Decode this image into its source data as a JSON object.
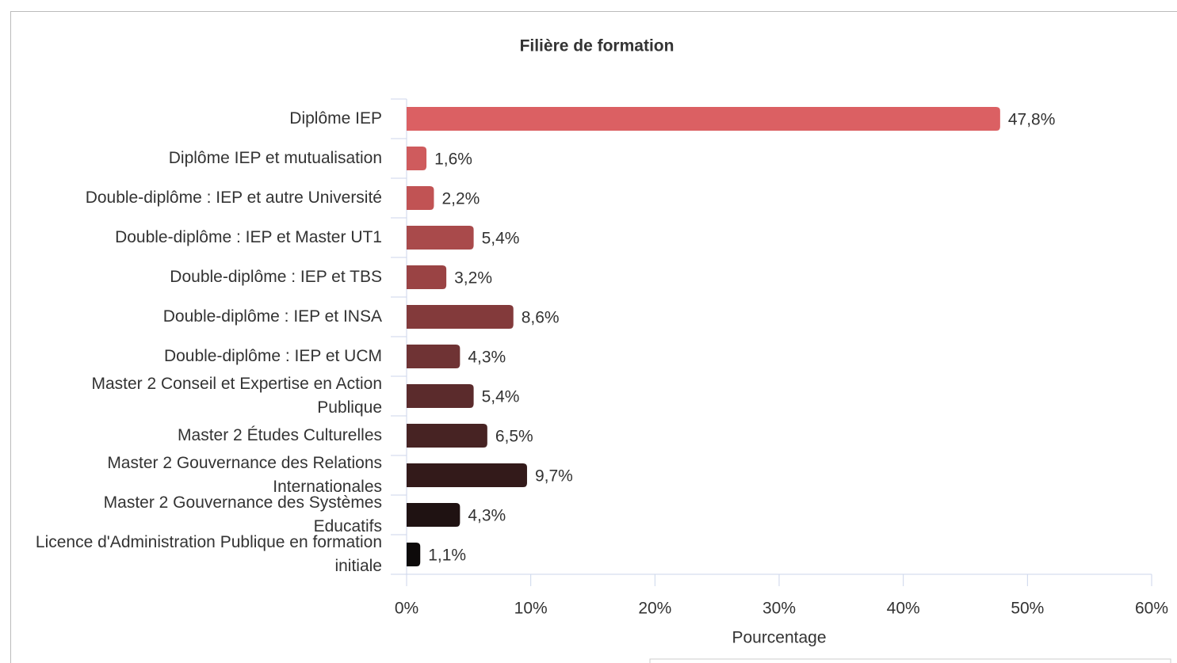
{
  "chart_data": {
    "type": "bar",
    "orientation": "horizontal",
    "title": "Filière de formation",
    "x_axis_label": "Pourcentage",
    "categories": [
      "Diplôme IEP",
      "Diplôme IEP et mutualisation",
      "Double-diplôme : IEP et autre Université",
      "Double-diplôme : IEP et Master UT1",
      "Double-diplôme : IEP et TBS",
      "Double-diplôme : IEP et INSA",
      "Double-diplôme : IEP et UCM",
      "Master 2 Conseil et Expertise en Action Publique",
      "Master 2 Études Culturelles",
      "Master 2 Gouvernance des Relations Internationales",
      "Master 2 Gouvernance des Systèmes Educatifs",
      "Licence d'Administration Publique en formation initiale"
    ],
    "values": [
      47.8,
      1.6,
      2.2,
      5.4,
      3.2,
      8.6,
      4.3,
      5.4,
      6.5,
      9.7,
      4.3,
      1.1
    ],
    "value_labels": [
      "47,8%",
      "1,6%",
      "2,2%",
      "5,4%",
      "3,2%",
      "8,6%",
      "4,3%",
      "5,4%",
      "6,5%",
      "9,7%",
      "4,3%",
      "1,1%"
    ],
    "colors": [
      "#db6063",
      "#cf5b5d",
      "#c15354",
      "#a94a4b",
      "#9a4344",
      "#833a3b",
      "#6f3334",
      "#5b2b2c",
      "#472323",
      "#331a1a",
      "#1f1212",
      "#0d0a0a"
    ],
    "xlim": [
      0,
      60
    ],
    "xticks": [
      {
        "value": 0,
        "label": "0%"
      },
      {
        "value": 10,
        "label": "10%"
      },
      {
        "value": 20,
        "label": "20%"
      },
      {
        "value": 30,
        "label": "30%"
      },
      {
        "value": 40,
        "label": "40%"
      },
      {
        "value": 50,
        "label": "50%"
      },
      {
        "value": 60,
        "label": "60%"
      }
    ],
    "grid": false
  }
}
